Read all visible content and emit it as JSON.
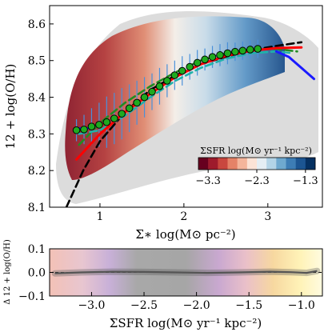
{
  "chart_data": [
    {
      "type": "scatter",
      "panel": "top",
      "xlabel": "Σ∗ log(M⊙ pc⁻²)",
      "ylabel": "12 + log(O/H)",
      "xlim": [
        0.4,
        3.65
      ],
      "ylim": [
        8.1,
        8.65
      ],
      "xticks": [
        "1",
        "2",
        "3"
      ],
      "yticks": [
        "8.1",
        "8.2",
        "8.3",
        "8.4",
        "8.5",
        "8.6"
      ],
      "grid": false,
      "colorbar": {
        "label": "ΣSFR log(M⊙ yr⁻¹ kpc⁻²)",
        "range": [
          -3.5,
          -1.1
        ],
        "ticks": [
          "−3.3",
          "−2.3",
          "−1.3"
        ],
        "colors": [
          "#67001f",
          "#9e1b2c",
          "#c9473e",
          "#e58267",
          "#f4b59b",
          "#fbe3d6",
          "#e4eef4",
          "#b3d4e7",
          "#6fa9cf",
          "#3d7db5",
          "#1c5592",
          "#053061"
        ],
        "placement": "lower-right"
      },
      "series": [
        {
          "style": "binned-median-points",
          "x": [
            0.72,
            0.81,
            0.9,
            0.99,
            1.08,
            1.17,
            1.26,
            1.35,
            1.44,
            1.53,
            1.62,
            1.71,
            1.8,
            1.89,
            1.98,
            2.07,
            2.16,
            2.25,
            2.34,
            2.43,
            2.52,
            2.61,
            2.7,
            2.79,
            2.88
          ],
          "y": [
            8.31,
            8.312,
            8.32,
            8.325,
            8.332,
            8.342,
            8.355,
            8.37,
            8.385,
            8.4,
            8.415,
            8.43,
            8.445,
            8.46,
            8.472,
            8.483,
            8.494,
            8.503,
            8.51,
            8.515,
            8.52,
            8.524,
            8.527,
            8.53,
            8.532
          ],
          "yerr": [
            0.03,
            0.04,
            0.05,
            0.06,
            0.07,
            0.07,
            0.07,
            0.065,
            0.06,
            0.055,
            0.05,
            0.05,
            0.045,
            0.04,
            0.04,
            0.035,
            0.035,
            0.03,
            0.03,
            0.03,
            0.03,
            0.025,
            0.025,
            0.025,
            0.025
          ]
        },
        {
          "style": "fit-line",
          "color": "#ff0000",
          "x": [
            0.72,
            1.0,
            1.3,
            1.6,
            1.9,
            2.2,
            2.5,
            2.8,
            3.1,
            3.4
          ],
          "y": [
            8.23,
            8.3,
            8.36,
            8.41,
            8.455,
            8.49,
            8.513,
            8.527,
            8.534,
            8.536
          ]
        },
        {
          "style": "fit-line-dashed",
          "color": "#000000",
          "x": [
            0.6,
            0.8,
            1.0,
            1.3,
            1.6,
            1.9,
            2.2,
            2.5,
            2.8,
            3.1,
            3.4
          ],
          "y": [
            8.1,
            8.2,
            8.28,
            8.36,
            8.42,
            8.46,
            8.49,
            8.51,
            8.528,
            8.54,
            8.55
          ]
        },
        {
          "style": "fit-line-dashed",
          "color": "#228b22",
          "x": [
            0.75,
            1.0,
            1.3,
            1.6,
            1.9,
            2.2,
            2.5,
            2.8,
            3.1,
            3.35
          ],
          "y": [
            8.27,
            8.33,
            8.385,
            8.43,
            8.468,
            8.5,
            8.52,
            8.53,
            8.532,
            8.525
          ]
        },
        {
          "style": "fit-line-dashed",
          "color": "#20b2aa",
          "x": [
            0.75,
            1.0,
            1.3,
            1.6,
            1.9,
            2.2,
            2.5,
            2.8,
            3.1,
            3.3
          ],
          "y": [
            8.3,
            8.31,
            8.35,
            8.4,
            8.445,
            8.48,
            8.505,
            8.52,
            8.525,
            8.52
          ]
        },
        {
          "style": "fit-line",
          "color": "#1a1aff",
          "x": [
            0.72,
            0.85
          ],
          "y": [
            8.315,
            8.315
          ]
        },
        {
          "style": "fit-line",
          "color": "#1a1aff",
          "x": [
            3.1,
            3.25,
            3.4,
            3.55
          ],
          "y": [
            8.525,
            8.51,
            8.48,
            8.45
          ]
        }
      ]
    },
    {
      "type": "line",
      "panel": "bottom",
      "xlabel": "ΣSFR log(M⊙ yr⁻¹ kpc⁻²)",
      "ylabel": "Δ 12 + log(O/H)",
      "xlim": [
        -3.4,
        -0.8
      ],
      "ylim": [
        -0.1,
        0.1
      ],
      "xticks": [
        "−3.0",
        "−2.5",
        "−2.0",
        "−1.5",
        "−1.0"
      ],
      "yticks": [
        "−0.1",
        "0.0",
        "0.1"
      ],
      "series": [
        {
          "color": "#555555",
          "x": [
            -3.35,
            -3.1,
            -2.8,
            -2.5,
            -2.2,
            -1.9,
            -1.6,
            -1.3,
            -1.1,
            -0.95,
            -0.85
          ],
          "y": [
            -0.004,
            0.0,
            0.003,
            0.002,
            0.0,
            -0.002,
            0.0,
            0.003,
            0.001,
            -0.002,
            0.006
          ]
        }
      ]
    }
  ]
}
